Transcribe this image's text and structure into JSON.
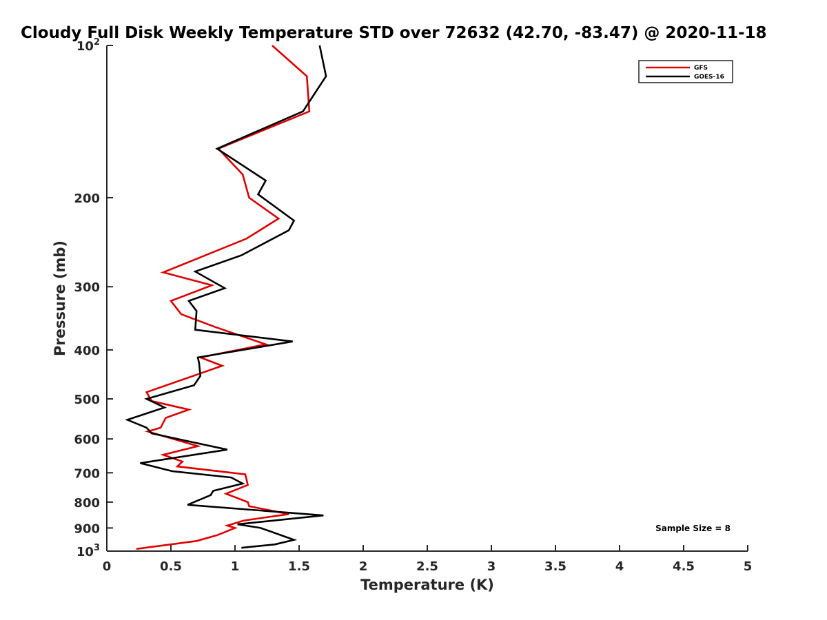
{
  "chart_data": {
    "type": "line",
    "title": "Cloudy Full Disk Weekly Temperature STD over 72632 (42.70, -83.47) @ 2020-11-18",
    "xlabel": "Temperature (K)",
    "ylabel": "Pressure (mb)",
    "xlim": [
      0,
      5
    ],
    "ylim": [
      100,
      1000
    ],
    "y_scale": "log",
    "y_reversed": true,
    "grid": false,
    "legend_position": "top-right",
    "x_ticks": [
      {
        "value": 0,
        "label": "0"
      },
      {
        "value": 0.5,
        "label": "0.5"
      },
      {
        "value": 1,
        "label": "1"
      },
      {
        "value": 1.5,
        "label": "1.5"
      },
      {
        "value": 2,
        "label": "2"
      },
      {
        "value": 2.5,
        "label": "2.5"
      },
      {
        "value": 3,
        "label": "3"
      },
      {
        "value": 3.5,
        "label": "3.5"
      },
      {
        "value": 4,
        "label": "4"
      },
      {
        "value": 4.5,
        "label": "4.5"
      },
      {
        "value": 5,
        "label": "5"
      }
    ],
    "y_ticks": [
      {
        "value": 100,
        "base": "10",
        "exp": "2"
      },
      {
        "value": 200,
        "label": "200"
      },
      {
        "value": 300,
        "label": "300"
      },
      {
        "value": 400,
        "label": "400"
      },
      {
        "value": 500,
        "label": "500"
      },
      {
        "value": 600,
        "label": "600"
      },
      {
        "value": 700,
        "label": "700"
      },
      {
        "value": 800,
        "label": "800"
      },
      {
        "value": 900,
        "label": "900"
      },
      {
        "value": 1000,
        "base": "10",
        "exp": "3"
      }
    ],
    "series": [
      {
        "name": "GFS",
        "color": "#e00000",
        "points": [
          [
            1.29,
            100
          ],
          [
            1.56,
            115
          ],
          [
            1.58,
            135
          ],
          [
            0.87,
            160
          ],
          [
            1.06,
            180
          ],
          [
            1.11,
            200
          ],
          [
            1.34,
            220
          ],
          [
            1.09,
            241
          ],
          [
            0.44,
            281
          ],
          [
            0.82,
            298
          ],
          [
            0.5,
            320
          ],
          [
            0.58,
            340
          ],
          [
            0.84,
            360
          ],
          [
            1.24,
            390
          ],
          [
            0.73,
            414
          ],
          [
            0.9,
            430
          ],
          [
            0.31,
            485
          ],
          [
            0.35,
            505
          ],
          [
            0.64,
            525
          ],
          [
            0.46,
            545
          ],
          [
            0.42,
            570
          ],
          [
            0.32,
            580
          ],
          [
            0.71,
            620
          ],
          [
            0.44,
            645
          ],
          [
            0.59,
            665
          ],
          [
            0.55,
            680
          ],
          [
            1.08,
            705
          ],
          [
            1.1,
            740
          ],
          [
            0.93,
            770
          ],
          [
            1.1,
            800
          ],
          [
            1.11,
            815
          ],
          [
            1.42,
            845
          ],
          [
            1.07,
            870
          ],
          [
            0.94,
            890
          ],
          [
            1.0,
            900
          ],
          [
            0.86,
            930
          ],
          [
            0.7,
            955
          ],
          [
            0.23,
            990
          ]
        ]
      },
      {
        "name": "GOES-16",
        "color": "#000000",
        "points": [
          [
            1.66,
            100
          ],
          [
            1.71,
            115
          ],
          [
            1.53,
            135
          ],
          [
            0.86,
            160
          ],
          [
            1.24,
            185
          ],
          [
            1.18,
            197
          ],
          [
            1.46,
            222
          ],
          [
            1.42,
            232
          ],
          [
            1.05,
            260
          ],
          [
            0.69,
            280
          ],
          [
            0.92,
            302
          ],
          [
            0.64,
            320
          ],
          [
            0.7,
            335
          ],
          [
            0.69,
            365
          ],
          [
            1.45,
            385
          ],
          [
            0.71,
            414
          ],
          [
            0.72,
            425
          ],
          [
            0.73,
            450
          ],
          [
            0.68,
            470
          ],
          [
            0.31,
            500
          ],
          [
            0.45,
            520
          ],
          [
            0.16,
            550
          ],
          [
            0.31,
            570
          ],
          [
            0.35,
            585
          ],
          [
            0.94,
            630
          ],
          [
            0.26,
            670
          ],
          [
            0.51,
            695
          ],
          [
            0.97,
            715
          ],
          [
            1.06,
            735
          ],
          [
            0.83,
            760
          ],
          [
            0.81,
            775
          ],
          [
            0.63,
            810
          ],
          [
            1.69,
            850
          ],
          [
            1.02,
            885
          ],
          [
            1.2,
            900
          ],
          [
            1.46,
            950
          ],
          [
            1.31,
            970
          ],
          [
            1.05,
            985
          ]
        ]
      }
    ],
    "annotations": [
      {
        "text": "Sample Size = 8",
        "position": "bottom-right"
      }
    ]
  }
}
